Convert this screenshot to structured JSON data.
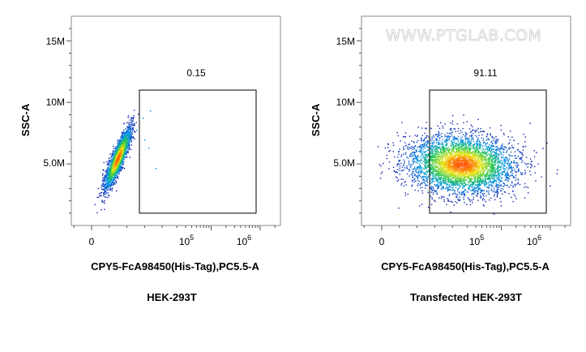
{
  "watermark": "WWW.PTGLAB.COM",
  "chart_data": [
    {
      "type": "scatter",
      "title": "HEK-293T",
      "xlabel": "CPY5-FcA98450(His-Tag),PC5.5-A",
      "ylabel": "SSC-A",
      "x_scale": "biexponential",
      "x_ticks": [
        "0",
        "10^5",
        "10^6"
      ],
      "y_ticks": [
        "5.0M",
        "10M",
        "15M"
      ],
      "ylim": [
        0,
        17000000
      ],
      "gate": {
        "label": "0.15",
        "value": 0.15,
        "x_range": [
          15000,
          1500000
        ],
        "y_range": [
          1000000,
          11000000
        ]
      },
      "population": {
        "x_center": 2500,
        "y_center": 5800000,
        "shape": "narrow diagonal ellipse"
      }
    },
    {
      "type": "scatter",
      "title": "Transfected HEK-293T",
      "xlabel": "CPY5-FcA98450(His-Tag),PC5.5-A",
      "ylabel": "SSC-A",
      "x_scale": "biexponential",
      "x_ticks": [
        "0",
        "10^5",
        "10^6"
      ],
      "y_ticks": [
        "5.0M",
        "10M",
        "15M"
      ],
      "ylim": [
        0,
        17000000
      ],
      "gate": {
        "label": "91.11",
        "value": 91.11,
        "x_range": [
          15000,
          1500000
        ],
        "y_range": [
          1000000,
          11000000
        ]
      },
      "population": {
        "x_center": 45000,
        "y_center": 4800000,
        "shape": "broad ellipse"
      }
    }
  ]
}
